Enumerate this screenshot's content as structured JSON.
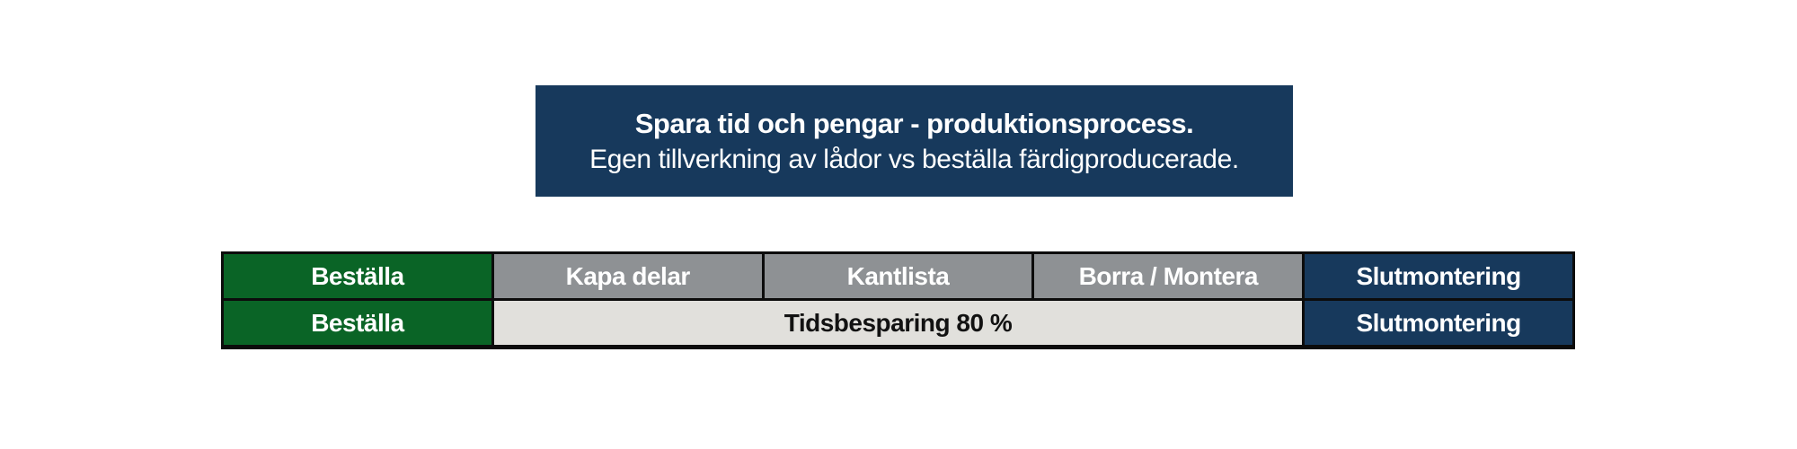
{
  "canvas": {
    "bg": "#ffffff"
  },
  "title_box": {
    "bg": "#17395c",
    "text_color": "#ffffff",
    "line1": "Spara tid och pengar - produktionsprocess.",
    "line2": "Egen tillverkning av lådor vs beställa färdigproducerade."
  },
  "process_table": {
    "border_color": "#0c0c0c",
    "colors": {
      "green": "#0a6426",
      "gray": "#8e9194",
      "navy": "#17395c",
      "light_gray": "#e1e0dc"
    },
    "row1": {
      "cells": [
        {
          "label": "Beställa"
        },
        {
          "label": "Kapa delar"
        },
        {
          "label": "Kantlista"
        },
        {
          "label": "Borra / Montera"
        },
        {
          "label": "Slutmontering"
        }
      ]
    },
    "row2": {
      "cells": [
        {
          "label": "Beställa"
        },
        {
          "label": "Tidsbesparing 80 %"
        },
        {
          "label": "Slutmontering"
        }
      ]
    }
  }
}
